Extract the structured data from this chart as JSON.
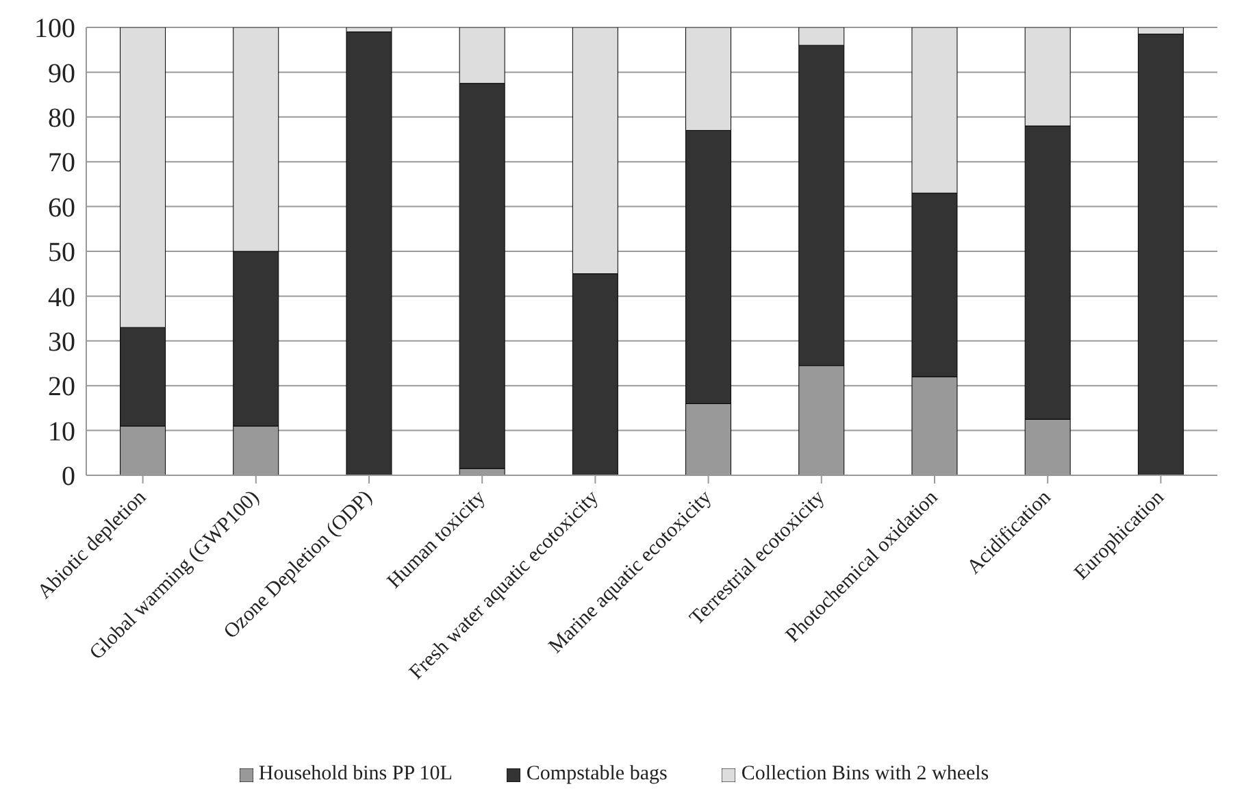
{
  "chart_data": {
    "type": "bar",
    "stacked": true,
    "categories": [
      "Abiotic depletion",
      "Global warming (GWP100)",
      "Ozone Depletion (ODP)",
      "Human toxicity",
      "Fresh water aquatic ecotoxicity",
      "Marine aquatic ecotoxicity",
      "Terrestrial ecotoxicity",
      "Photochemical oxidation",
      "Acidification",
      "Europhication"
    ],
    "series": [
      {
        "name": "Household bins PP 10L",
        "color": "#999999",
        "values": [
          11,
          11,
          0,
          1.5,
          0,
          16,
          24.5,
          22,
          12.5,
          0
        ]
      },
      {
        "name": "Compstable bags",
        "color": "#333333",
        "values": [
          22,
          39,
          99,
          86,
          45,
          61,
          71.5,
          41,
          65.5,
          98.5
        ]
      },
      {
        "name": "Collection Bins with 2 wheels",
        "color": "#dddddd",
        "values": [
          67,
          50,
          1,
          12.5,
          55,
          23,
          4,
          37,
          22,
          1.5
        ]
      }
    ],
    "ylim": [
      0,
      100
    ],
    "yticks": [
      0,
      10,
      20,
      30,
      40,
      50,
      60,
      70,
      80,
      90,
      100
    ],
    "grid": "y",
    "legend": "bottom"
  }
}
